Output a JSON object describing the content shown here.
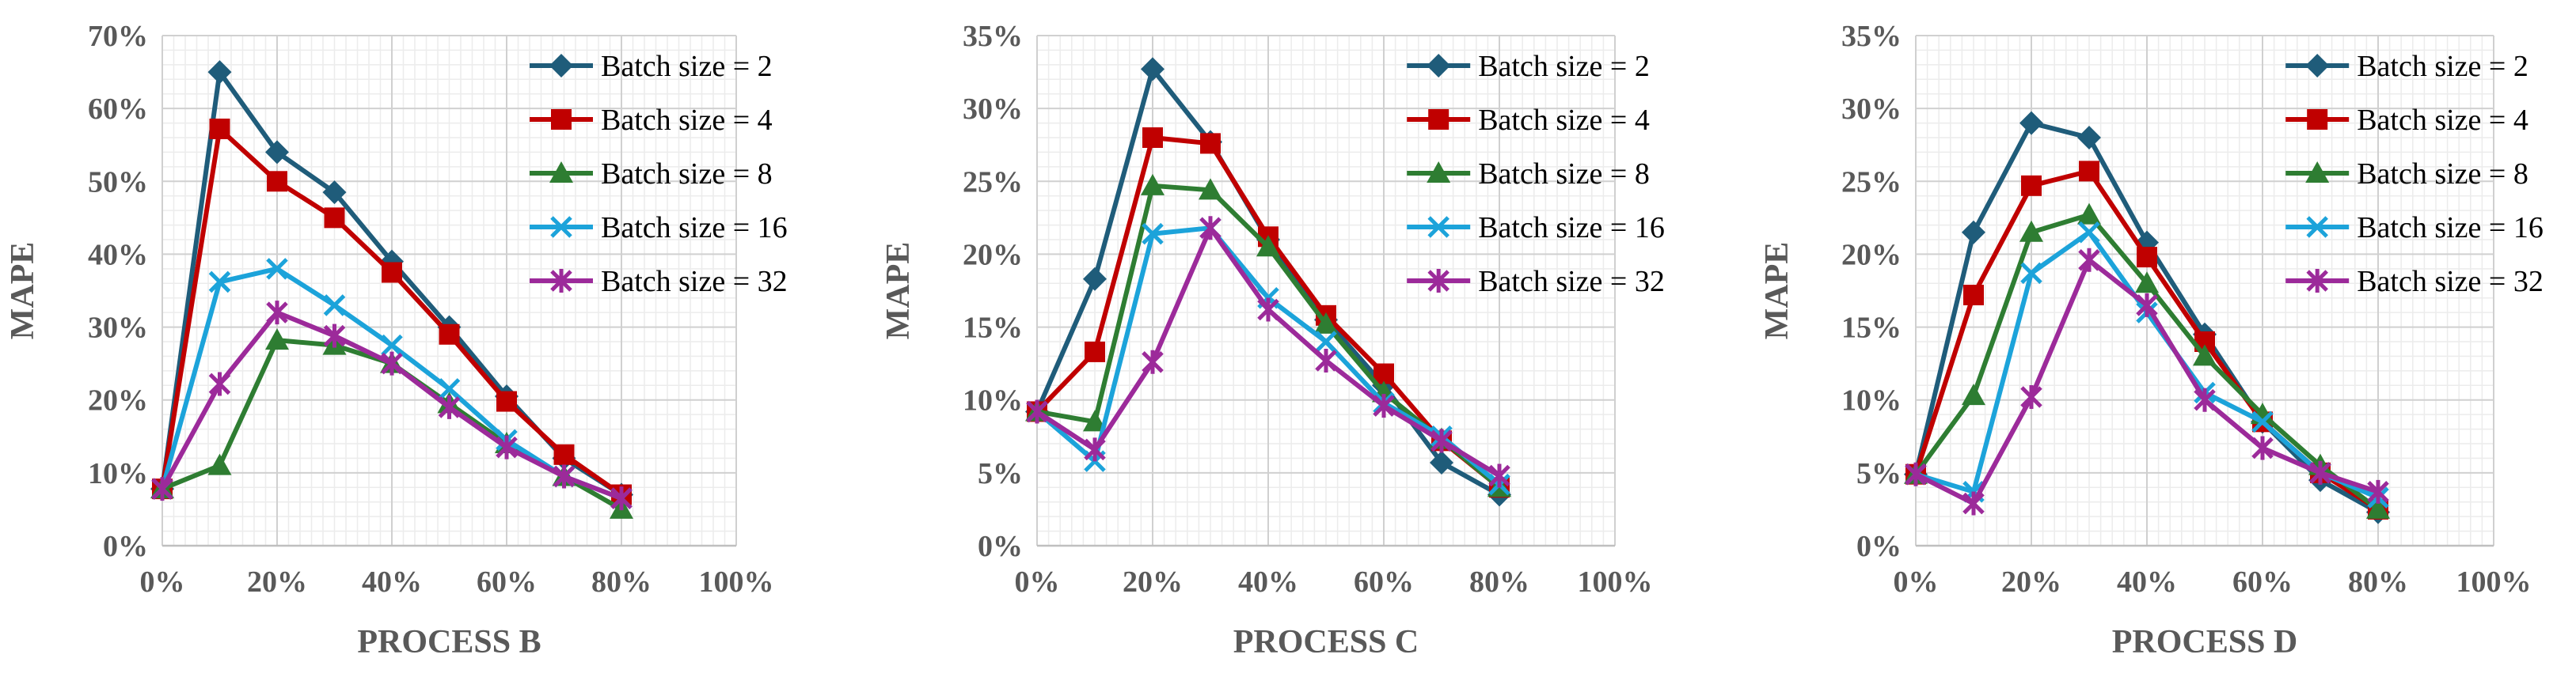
{
  "chart_data": [
    {
      "type": "line",
      "title": "",
      "xlabel": "PROCESS B",
      "ylabel": "MAPE",
      "x": [
        0,
        10,
        20,
        30,
        40,
        50,
        60,
        70,
        80
      ],
      "xlim": [
        0,
        100
      ],
      "ylim": [
        0,
        70
      ],
      "xticks": [
        "0%",
        "20%",
        "40%",
        "60%",
        "80%",
        "100%"
      ],
      "yticks": [
        "0%",
        "10%",
        "20%",
        "30%",
        "40%",
        "50%",
        "60%",
        "70%"
      ],
      "legend": "top-right",
      "series": [
        {
          "name": "Batch size = 2",
          "values": [
            7.8,
            65.0,
            54.0,
            48.5,
            39.0,
            30.0,
            20.5,
            12.0,
            7.0
          ]
        },
        {
          "name": "Batch size = 4",
          "values": [
            7.8,
            57.2,
            50.0,
            45.0,
            37.5,
            29.0,
            19.8,
            12.5,
            7.0
          ]
        },
        {
          "name": "Batch size = 8",
          "values": [
            7.8,
            11.0,
            28.2,
            27.5,
            25.0,
            19.5,
            14.0,
            9.5,
            5.0
          ]
        },
        {
          "name": "Batch size = 16",
          "values": [
            7.8,
            36.2,
            38.0,
            33.0,
            27.5,
            21.5,
            14.5,
            9.5,
            6.5
          ]
        },
        {
          "name": "Batch size = 32",
          "values": [
            7.8,
            22.2,
            32.0,
            28.8,
            25.0,
            19.0,
            13.5,
            9.5,
            6.5
          ]
        }
      ]
    },
    {
      "type": "line",
      "title": "",
      "xlabel": "PROCESS C",
      "ylabel": "MAPE",
      "x": [
        0,
        10,
        20,
        30,
        40,
        50,
        60,
        70,
        80
      ],
      "xlim": [
        0,
        100
      ],
      "ylim": [
        0,
        35
      ],
      "xticks": [
        "0%",
        "20%",
        "40%",
        "60%",
        "80%",
        "100%"
      ],
      "yticks": [
        "0%",
        "5%",
        "10%",
        "15%",
        "20%",
        "25%",
        "30%",
        "35%"
      ],
      "legend": "top-right",
      "series": [
        {
          "name": "Batch size = 2",
          "values": [
            9.2,
            18.3,
            32.7,
            27.7,
            21.0,
            15.5,
            11.0,
            5.7,
            3.5
          ]
        },
        {
          "name": "Batch size = 4",
          "values": [
            9.2,
            13.3,
            28.0,
            27.6,
            21.2,
            15.8,
            11.8,
            7.2,
            4.0
          ]
        },
        {
          "name": "Batch size = 8",
          "values": [
            9.2,
            8.5,
            24.7,
            24.4,
            20.5,
            15.2,
            10.5,
            7.3,
            4.0
          ]
        },
        {
          "name": "Batch size = 16",
          "values": [
            9.2,
            5.8,
            21.4,
            21.8,
            17.0,
            14.0,
            9.8,
            7.5,
            4.2
          ]
        },
        {
          "name": "Batch size = 32",
          "values": [
            9.2,
            6.6,
            12.6,
            21.8,
            16.2,
            12.7,
            9.6,
            7.2,
            4.8
          ]
        }
      ]
    },
    {
      "type": "line",
      "title": "",
      "xlabel": "PROCESS D",
      "ylabel": "MAPE",
      "x": [
        0,
        10,
        20,
        30,
        40,
        50,
        60,
        70,
        80
      ],
      "xlim": [
        0,
        100
      ],
      "ylim": [
        0,
        35
      ],
      "xticks": [
        "0%",
        "20%",
        "40%",
        "60%",
        "80%",
        "100%"
      ],
      "yticks": [
        "0%",
        "5%",
        "10%",
        "15%",
        "20%",
        "25%",
        "30%",
        "35%"
      ],
      "legend": "top-right",
      "series": [
        {
          "name": "Batch size = 2",
          "values": [
            4.9,
            21.5,
            29.0,
            28.0,
            20.8,
            14.5,
            8.5,
            4.5,
            2.3
          ]
        },
        {
          "name": "Batch size = 4",
          "values": [
            4.9,
            17.2,
            24.7,
            25.7,
            19.8,
            14.0,
            8.5,
            5.0,
            2.5
          ]
        },
        {
          "name": "Batch size = 8",
          "values": [
            4.9,
            10.3,
            21.5,
            22.7,
            18.0,
            13.0,
            9.0,
            5.5,
            2.5
          ]
        },
        {
          "name": "Batch size = 16",
          "values": [
            4.9,
            3.7,
            18.7,
            21.5,
            16.0,
            10.5,
            8.5,
            5.0,
            3.3
          ]
        },
        {
          "name": "Batch size = 32",
          "values": [
            4.9,
            2.9,
            10.2,
            19.6,
            16.5,
            10.0,
            6.7,
            5.0,
            3.7
          ]
        }
      ]
    }
  ],
  "colors": {
    "Batch size = 2": "#1F5C7A",
    "Batch size = 4": "#C00000",
    "Batch size = 8": "#2E7D32",
    "Batch size = 16": "#1CA3DA",
    "Batch size = 32": "#9C2A9A"
  },
  "markers": {
    "Batch size = 2": "diamond",
    "Batch size = 4": "square",
    "Batch size = 8": "triangle",
    "Batch size = 16": "x",
    "Batch size = 32": "asterisk"
  }
}
